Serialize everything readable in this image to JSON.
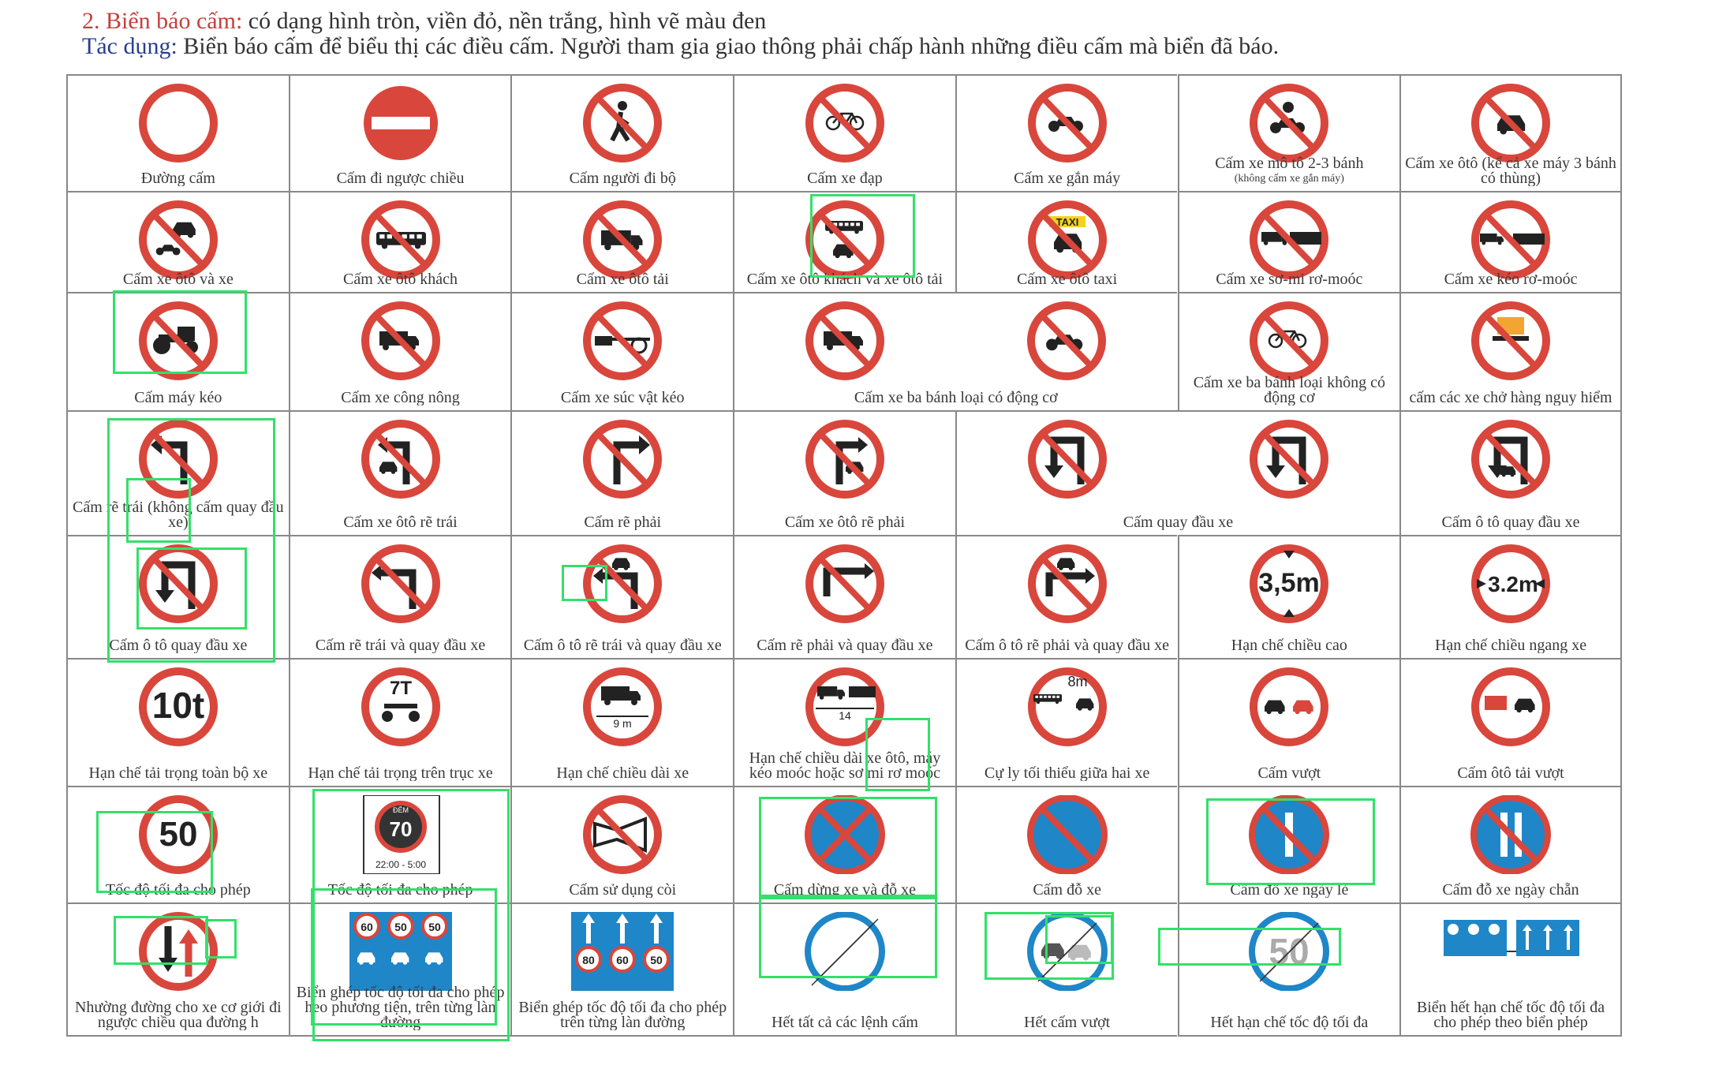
{
  "header": {
    "heading": "2. Biển báo cấm:",
    "heading_rest": " có dạng hình tròn, viền đỏ, nền trắng, hình vẽ màu đen",
    "usage_label": "Tác dụng:",
    "usage_text": " Biển báo cấm để biểu thị các điều cấm. Người tham gia giao thông phải chấp hành những điều cấm mà biển đã báo."
  },
  "colors": {
    "sign_red": "#d9463c",
    "sign_blue": "#1f86c8",
    "highlight": "#33e06a"
  },
  "signs": [
    {
      "icon": "no-entry-ring-icon",
      "label": "Đường cấm"
    },
    {
      "icon": "no-entry-bar-icon",
      "label": "Cấm đi ngược chiều"
    },
    {
      "icon": "no-pedestrian-icon",
      "label": "Cấm người đi bộ"
    },
    {
      "icon": "no-bicycle-icon",
      "label": "Cấm xe đạp"
    },
    {
      "icon": "no-moped-icon",
      "label": "Cấm xe gắn máy"
    },
    {
      "icon": "no-motorcycle-icon",
      "label": "Cấm xe mô tô 2-3 bánh",
      "sub": "(không cấm xe gắn máy)"
    },
    {
      "icon": "no-car-icon",
      "label": "Cấm xe ôtô (kể cả xe máy 3 bánh có thùng)"
    },
    {
      "icon": "no-car-and-motorcycle-icon",
      "label": "Cấm xe ôtô và xe"
    },
    {
      "icon": "no-bus-icon",
      "label": "Cấm xe ôtô khách"
    },
    {
      "icon": "no-truck-icon",
      "label": "Cấm xe ôtô tải"
    },
    {
      "icon": "no-bus-and-truck-icon",
      "label": "Cấm xe ôtô khách và xe ôtô tải"
    },
    {
      "icon": "no-taxi-icon",
      "label": "Cấm xe ôtô taxi",
      "taxi": "TAXI"
    },
    {
      "icon": "no-semitrailer-icon",
      "label": "Cấm xe sơ-mi rơ-moóc"
    },
    {
      "icon": "no-trailer-icon",
      "label": "Cấm xe kéo rơ-moóc"
    },
    {
      "icon": "no-tractor-icon",
      "label": "Cấm máy kéo"
    },
    {
      "icon": "no-farm-vehicle-icon",
      "label": "Cấm xe công nông"
    },
    {
      "icon": "no-animal-cart-icon",
      "label": "Cấm xe súc vật kéo"
    },
    {
      "icon": "no-three-wheel-motor-icon",
      "label": "Cấm xe ba bánh loại có động cơ"
    },
    {
      "icon": "no-three-wheel-motorbike-icon",
      "label": ""
    },
    {
      "icon": "no-tricycle-icon",
      "label": "Cấm xe ba bánh loại không có động cơ"
    },
    {
      "icon": "no-dangerous-goods-icon",
      "label": "cấm các xe chở hàng nguy hiểm"
    },
    {
      "icon": "no-left-turn-icon",
      "label": "Cấm rẽ trái (không cấm quay đầu xe)"
    },
    {
      "icon": "no-left-turn-car-icon",
      "label": "Cấm xe ôtô rẽ trái"
    },
    {
      "icon": "no-right-turn-icon",
      "label": "Cấm rẽ phải"
    },
    {
      "icon": "no-right-turn-car-icon",
      "label": "Cấm xe ôtô rẽ phải"
    },
    {
      "icon": "no-u-turn-icon",
      "label": "Cấm quay đầu xe"
    },
    {
      "icon": "no-u-turn-alt-icon",
      "label": ""
    },
    {
      "icon": "no-car-u-turn-icon",
      "label": "Cấm ô tô quay đầu xe"
    },
    {
      "icon": "no-car-u-turn-2-icon",
      "label": "Cấm ô tô quay đầu xe"
    },
    {
      "icon": "no-left-and-u-turn-icon",
      "label": "Cấm rẽ trái và quay đầu xe"
    },
    {
      "icon": "no-car-left-and-u-turn-icon",
      "label": "Cấm ô tô rẽ trái và quay đầu xe"
    },
    {
      "icon": "no-right-and-u-turn-icon",
      "label": "Cấm rẽ phải và quay đầu xe"
    },
    {
      "icon": "no-car-right-and-u-turn-icon",
      "label": "Cấm ô tô rẽ phải và quay đầu xe"
    },
    {
      "icon": "height-limit-icon",
      "label": "Hạn chế chiều cao",
      "value": "3,5m"
    },
    {
      "icon": "width-limit-icon",
      "label": "Hạn chế chiều ngang xe",
      "value": "3.2m"
    },
    {
      "icon": "weight-limit-icon",
      "label": "Hạn chế tải trọng toàn bộ xe",
      "value": "10t"
    },
    {
      "icon": "axle-load-limit-icon",
      "label": "Hạn chế tải trọng trên trục xe",
      "value": "7T"
    },
    {
      "icon": "length-limit-icon",
      "label": "Hạn chế chiều dài xe",
      "value": "9 m"
    },
    {
      "icon": "trailer-length-limit-icon",
      "label": "Hạn chế chiều dài xe ôtô, máy kéo moóc hoặc sơ mi rơ moóc",
      "value": "14"
    },
    {
      "icon": "min-distance-icon",
      "label": "Cự ly tối thiểu giữa hai xe",
      "value": "8m"
    },
    {
      "icon": "no-overtaking-icon",
      "label": "Cấm vượt"
    },
    {
      "icon": "no-truck-overtaking-icon",
      "label": "Cấm ôtô tải vượt"
    },
    {
      "icon": "speed-limit-icon",
      "label": "Tốc độ tối đa cho phép",
      "value": "50"
    },
    {
      "icon": "night-speed-limit-icon",
      "label": "Tốc độ tối đa cho phép",
      "value": "70",
      "night": "ĐÊM",
      "hours": "22:00 - 5:00"
    },
    {
      "icon": "no-horn-icon",
      "label": "Cấm sử dụng còi"
    },
    {
      "icon": "no-stopping-icon",
      "label": "Cấm dừng xe và đỗ xe"
    },
    {
      "icon": "no-parking-icon",
      "label": "Cấm đỗ xe"
    },
    {
      "icon": "no-parking-odd-days-icon",
      "label": "Cấm đỗ xe ngày lẻ"
    },
    {
      "icon": "no-parking-even-days-icon",
      "label": "Cấm đỗ xe ngày chẵn"
    },
    {
      "icon": "priority-oncoming-icon",
      "label": "Nhường đường cho xe cơ giới đi ngược chiều qua đường h"
    },
    {
      "icon": "lane-speed-limit-icon",
      "label": "Biển ghép tốc độ tối đa cho phép heo phương tiện, trên từng làn đường",
      "values": [
        "60",
        "50",
        "50"
      ]
    },
    {
      "icon": "lane-speed-limit-2-icon",
      "label": "Biển ghép tốc độ tối đa cho phép trên từng làn đường",
      "values": [
        "80",
        "60",
        "50"
      ]
    },
    {
      "icon": "end-all-restrictions-icon",
      "label": "Hết tất cả các lệnh cấm"
    },
    {
      "icon": "end-no-overtaking-icon",
      "label": "Hết cấm vượt"
    },
    {
      "icon": "end-speed-limit-icon",
      "label": "Hết hạn chế tốc độ tối đa",
      "value": "50"
    },
    {
      "icon": "end-lane-speed-limit-icon",
      "label": "Biển hết hạn chế tốc độ tối đa cho phép theo biển phép"
    }
  ]
}
